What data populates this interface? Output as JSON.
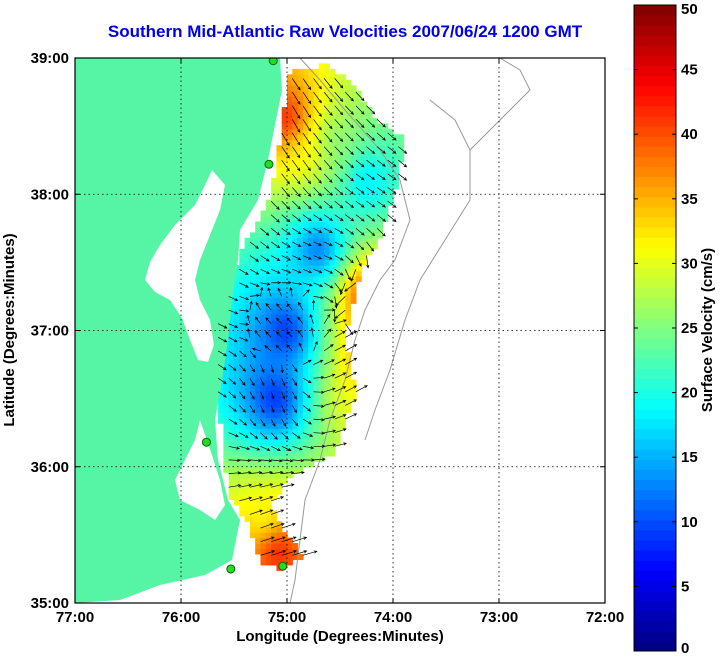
{
  "chart_data": {
    "type": "heatmap",
    "title": "Southern Mid-Atlantic Raw Velocities 2007/06/24 1200 GMT",
    "xlabel": "Longitude (Degrees:Minutes)",
    "ylabel": "Latitude (Degrees:Minutes)",
    "xlim": [
      -77,
      -72
    ],
    "ylim": [
      35,
      39
    ],
    "x_ticks": [
      {
        "value": -77,
        "label": "77:00"
      },
      {
        "value": -76,
        "label": "76:00"
      },
      {
        "value": -75,
        "label": "75:00"
      },
      {
        "value": -74,
        "label": "74:00"
      },
      {
        "value": -73,
        "label": "73:00"
      },
      {
        "value": -72,
        "label": "72:00"
      }
    ],
    "y_ticks": [
      {
        "value": 35,
        "label": "35:00"
      },
      {
        "value": 36,
        "label": "36:00"
      },
      {
        "value": 37,
        "label": "37:00"
      },
      {
        "value": 38,
        "label": "38:00"
      },
      {
        "value": 39,
        "label": "39:00"
      }
    ],
    "grid": true,
    "colorbar": {
      "label": "Surface Velocity (cm/s)",
      "min": 0,
      "max": 50,
      "ticks": [
        0,
        5,
        10,
        15,
        20,
        25,
        30,
        35,
        40,
        45,
        50
      ],
      "colormap": "jet"
    },
    "land_color": "#55f5a5",
    "field_polygon": [
      [
        -74.97,
        38.92
      ],
      [
        -74.6,
        38.95
      ],
      [
        -74.35,
        38.78
      ],
      [
        -74.15,
        38.55
      ],
      [
        -73.9,
        38.42
      ],
      [
        -73.95,
        38.1
      ],
      [
        -74.1,
        37.72
      ],
      [
        -74.3,
        37.45
      ],
      [
        -74.45,
        36.95
      ],
      [
        -74.35,
        36.55
      ],
      [
        -74.55,
        36.1
      ],
      [
        -74.95,
        35.95
      ],
      [
        -75.15,
        35.72
      ],
      [
        -75.0,
        35.5
      ],
      [
        -74.85,
        35.35
      ],
      [
        -75.05,
        35.25
      ],
      [
        -75.25,
        35.3
      ],
      [
        -75.35,
        35.55
      ],
      [
        -75.55,
        35.8
      ],
      [
        -75.6,
        36.1
      ],
      [
        -75.65,
        36.5
      ],
      [
        -75.7,
        37.0
      ],
      [
        -75.45,
        37.55
      ],
      [
        -75.15,
        38.0
      ],
      [
        -75.05,
        38.5
      ]
    ],
    "velocity_hotspots": [
      {
        "lon": -75.0,
        "lat": 38.55,
        "speed": 45,
        "u": 0.5,
        "v": -1.0
      },
      {
        "lon": -74.85,
        "lat": 38.3,
        "speed": 32,
        "u": 0.6,
        "v": -0.9
      },
      {
        "lon": -74.55,
        "lat": 38.4,
        "speed": 25,
        "u": 0.7,
        "v": -0.7
      },
      {
        "lon": -74.25,
        "lat": 38.1,
        "speed": 16,
        "u": 0.8,
        "v": -0.5
      },
      {
        "lon": -74.25,
        "lat": 37.25,
        "speed": 45,
        "u": -1.0,
        "v": -0.4
      },
      {
        "lon": -74.2,
        "lat": 36.75,
        "speed": 42,
        "u": 0.8,
        "v": 0.6
      },
      {
        "lon": -74.4,
        "lat": 36.5,
        "speed": 30,
        "u": 0.9,
        "v": 0.5
      },
      {
        "lon": -75.1,
        "lat": 35.4,
        "speed": 45,
        "u": 1.0,
        "v": 0.3
      },
      {
        "lon": -75.2,
        "lat": 35.6,
        "speed": 30,
        "u": 1.0,
        "v": 0.4
      },
      {
        "lon": -75.0,
        "lat": 37.0,
        "speed": 6,
        "u": -0.7,
        "v": 0.7
      },
      {
        "lon": -75.1,
        "lat": 36.5,
        "speed": 6,
        "u": 0.3,
        "v": -1.0
      },
      {
        "lon": -74.7,
        "lat": 37.6,
        "speed": 9,
        "u": 0.9,
        "v": -0.3
      }
    ],
    "stations": [
      {
        "lon": -75.13,
        "lat": 38.98
      },
      {
        "lon": -75.17,
        "lat": 38.22
      },
      {
        "lon": -75.76,
        "lat": 36.18
      },
      {
        "lon": -75.53,
        "lat": 35.25
      },
      {
        "lon": -75.04,
        "lat": 35.27
      }
    ]
  }
}
